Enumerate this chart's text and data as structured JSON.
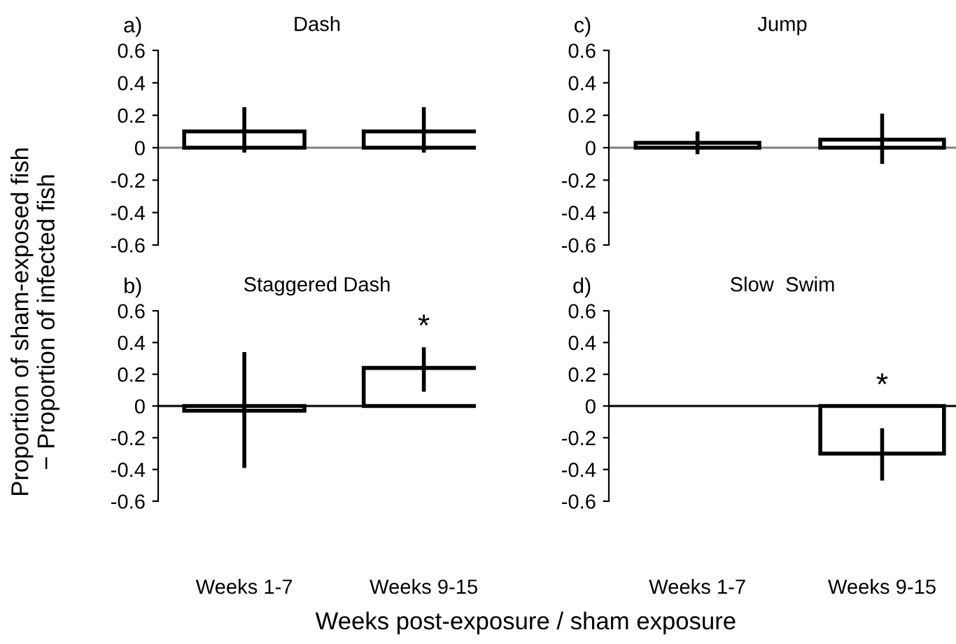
{
  "chart_data": [
    {
      "type": "bar",
      "title": "Dash",
      "annotations": [
        "a)"
      ],
      "ylabel": "Proportion of sham-exposed fish\n− Proportion of infected fish",
      "xlabel": "Weeks post-exposure / sham exposure",
      "categories": [
        null,
        null
      ],
      "values": [
        0.1,
        0.1
      ],
      "errors": [
        [
          -0.03,
          0.25
        ],
        [
          -0.03,
          0.25
        ]
      ],
      "color": "#ffffff",
      "ylim": [
        -0.6,
        0.6
      ],
      "yticks": [
        0.6,
        0.4,
        0.2,
        0,
        -0.2,
        -0.4,
        -0.6
      ],
      "ref_lines": [
        {
          "axis": "y",
          "value": 0,
          "color": "#808080"
        }
      ]
    },
    {
      "type": "bar",
      "title": "Jump",
      "annotations": [
        "c)"
      ],
      "categories": [
        null,
        null
      ],
      "values": [
        0.03,
        0.05
      ],
      "errors": [
        [
          -0.04,
          0.1
        ],
        [
          -0.1,
          0.21
        ]
      ],
      "color": "#ffffff",
      "ylim": [
        -0.6,
        0.6
      ],
      "yticks": [
        0.6,
        0.4,
        0.2,
        0,
        -0.2,
        -0.4,
        -0.6
      ],
      "ref_lines": [
        {
          "axis": "y",
          "value": 0,
          "color": "#808080"
        }
      ]
    },
    {
      "type": "bar",
      "title": "Staggered Dash",
      "annotations": [
        "b)",
        "*"
      ],
      "categories": [
        "Weeks 1-7",
        "Weeks 9-15"
      ],
      "values": [
        -0.03,
        0.24
      ],
      "errors": [
        [
          -0.39,
          0.34
        ],
        [
          0.09,
          0.37
        ]
      ],
      "color": "#ffffff",
      "ylim": [
        -0.6,
        0.6
      ],
      "yticks": [
        0.6,
        0.4,
        0.2,
        0,
        -0.2,
        -0.4,
        -0.6
      ],
      "ref_lines": [
        {
          "axis": "y",
          "value": 0,
          "color": "#000000"
        }
      ]
    },
    {
      "type": "bar",
      "title": "Slow  Swim",
      "annotations": [
        "d)",
        "*"
      ],
      "categories": [
        "Weeks 1-7",
        "Weeks 9-15"
      ],
      "values": [
        null,
        -0.3
      ],
      "errors": [
        null,
        [
          -0.47,
          -0.14
        ]
      ],
      "color": "#ffffff",
      "ylim": [
        -0.6,
        0.6
      ],
      "yticks": [
        0.6,
        0.4,
        0.2,
        0,
        -0.2,
        -0.4,
        -0.6
      ],
      "ref_lines": [
        {
          "axis": "y",
          "value": 0,
          "color": "#000000"
        }
      ]
    }
  ]
}
